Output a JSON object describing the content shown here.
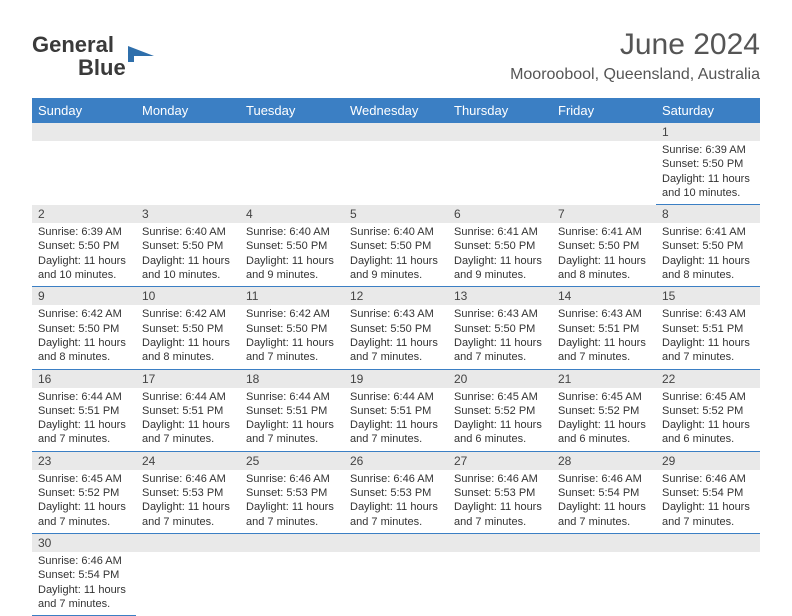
{
  "logo": {
    "text1": "General",
    "text2": "Blue"
  },
  "title": "June 2024",
  "location": "Mooroobool, Queensland, Australia",
  "colors": {
    "headerBg": "#3b7fc4",
    "headerText": "#ffffff",
    "dayNumBg": "#e9e9e9",
    "borderColor": "#3b7fc4",
    "logoBlue": "#2f6fab",
    "textColor": "#333333"
  },
  "dayHeaders": [
    "Sunday",
    "Monday",
    "Tuesday",
    "Wednesday",
    "Thursday",
    "Friday",
    "Saturday"
  ],
  "weeks": [
    [
      null,
      null,
      null,
      null,
      null,
      null,
      {
        "n": "1",
        "sunrise": "Sunrise: 6:39 AM",
        "sunset": "Sunset: 5:50 PM",
        "daylight": "Daylight: 11 hours and 10 minutes."
      }
    ],
    [
      {
        "n": "2",
        "sunrise": "Sunrise: 6:39 AM",
        "sunset": "Sunset: 5:50 PM",
        "daylight": "Daylight: 11 hours and 10 minutes."
      },
      {
        "n": "3",
        "sunrise": "Sunrise: 6:40 AM",
        "sunset": "Sunset: 5:50 PM",
        "daylight": "Daylight: 11 hours and 10 minutes."
      },
      {
        "n": "4",
        "sunrise": "Sunrise: 6:40 AM",
        "sunset": "Sunset: 5:50 PM",
        "daylight": "Daylight: 11 hours and 9 minutes."
      },
      {
        "n": "5",
        "sunrise": "Sunrise: 6:40 AM",
        "sunset": "Sunset: 5:50 PM",
        "daylight": "Daylight: 11 hours and 9 minutes."
      },
      {
        "n": "6",
        "sunrise": "Sunrise: 6:41 AM",
        "sunset": "Sunset: 5:50 PM",
        "daylight": "Daylight: 11 hours and 9 minutes."
      },
      {
        "n": "7",
        "sunrise": "Sunrise: 6:41 AM",
        "sunset": "Sunset: 5:50 PM",
        "daylight": "Daylight: 11 hours and 8 minutes."
      },
      {
        "n": "8",
        "sunrise": "Sunrise: 6:41 AM",
        "sunset": "Sunset: 5:50 PM",
        "daylight": "Daylight: 11 hours and 8 minutes."
      }
    ],
    [
      {
        "n": "9",
        "sunrise": "Sunrise: 6:42 AM",
        "sunset": "Sunset: 5:50 PM",
        "daylight": "Daylight: 11 hours and 8 minutes."
      },
      {
        "n": "10",
        "sunrise": "Sunrise: 6:42 AM",
        "sunset": "Sunset: 5:50 PM",
        "daylight": "Daylight: 11 hours and 8 minutes."
      },
      {
        "n": "11",
        "sunrise": "Sunrise: 6:42 AM",
        "sunset": "Sunset: 5:50 PM",
        "daylight": "Daylight: 11 hours and 7 minutes."
      },
      {
        "n": "12",
        "sunrise": "Sunrise: 6:43 AM",
        "sunset": "Sunset: 5:50 PM",
        "daylight": "Daylight: 11 hours and 7 minutes."
      },
      {
        "n": "13",
        "sunrise": "Sunrise: 6:43 AM",
        "sunset": "Sunset: 5:50 PM",
        "daylight": "Daylight: 11 hours and 7 minutes."
      },
      {
        "n": "14",
        "sunrise": "Sunrise: 6:43 AM",
        "sunset": "Sunset: 5:51 PM",
        "daylight": "Daylight: 11 hours and 7 minutes."
      },
      {
        "n": "15",
        "sunrise": "Sunrise: 6:43 AM",
        "sunset": "Sunset: 5:51 PM",
        "daylight": "Daylight: 11 hours and 7 minutes."
      }
    ],
    [
      {
        "n": "16",
        "sunrise": "Sunrise: 6:44 AM",
        "sunset": "Sunset: 5:51 PM",
        "daylight": "Daylight: 11 hours and 7 minutes."
      },
      {
        "n": "17",
        "sunrise": "Sunrise: 6:44 AM",
        "sunset": "Sunset: 5:51 PM",
        "daylight": "Daylight: 11 hours and 7 minutes."
      },
      {
        "n": "18",
        "sunrise": "Sunrise: 6:44 AM",
        "sunset": "Sunset: 5:51 PM",
        "daylight": "Daylight: 11 hours and 7 minutes."
      },
      {
        "n": "19",
        "sunrise": "Sunrise: 6:44 AM",
        "sunset": "Sunset: 5:51 PM",
        "daylight": "Daylight: 11 hours and 7 minutes."
      },
      {
        "n": "20",
        "sunrise": "Sunrise: 6:45 AM",
        "sunset": "Sunset: 5:52 PM",
        "daylight": "Daylight: 11 hours and 6 minutes."
      },
      {
        "n": "21",
        "sunrise": "Sunrise: 6:45 AM",
        "sunset": "Sunset: 5:52 PM",
        "daylight": "Daylight: 11 hours and 6 minutes."
      },
      {
        "n": "22",
        "sunrise": "Sunrise: 6:45 AM",
        "sunset": "Sunset: 5:52 PM",
        "daylight": "Daylight: 11 hours and 6 minutes."
      }
    ],
    [
      {
        "n": "23",
        "sunrise": "Sunrise: 6:45 AM",
        "sunset": "Sunset: 5:52 PM",
        "daylight": "Daylight: 11 hours and 7 minutes."
      },
      {
        "n": "24",
        "sunrise": "Sunrise: 6:46 AM",
        "sunset": "Sunset: 5:53 PM",
        "daylight": "Daylight: 11 hours and 7 minutes."
      },
      {
        "n": "25",
        "sunrise": "Sunrise: 6:46 AM",
        "sunset": "Sunset: 5:53 PM",
        "daylight": "Daylight: 11 hours and 7 minutes."
      },
      {
        "n": "26",
        "sunrise": "Sunrise: 6:46 AM",
        "sunset": "Sunset: 5:53 PM",
        "daylight": "Daylight: 11 hours and 7 minutes."
      },
      {
        "n": "27",
        "sunrise": "Sunrise: 6:46 AM",
        "sunset": "Sunset: 5:53 PM",
        "daylight": "Daylight: 11 hours and 7 minutes."
      },
      {
        "n": "28",
        "sunrise": "Sunrise: 6:46 AM",
        "sunset": "Sunset: 5:54 PM",
        "daylight": "Daylight: 11 hours and 7 minutes."
      },
      {
        "n": "29",
        "sunrise": "Sunrise: 6:46 AM",
        "sunset": "Sunset: 5:54 PM",
        "daylight": "Daylight: 11 hours and 7 minutes."
      }
    ],
    [
      {
        "n": "30",
        "sunrise": "Sunrise: 6:46 AM",
        "sunset": "Sunset: 5:54 PM",
        "daylight": "Daylight: 11 hours and 7 minutes."
      },
      null,
      null,
      null,
      null,
      null,
      null
    ]
  ]
}
